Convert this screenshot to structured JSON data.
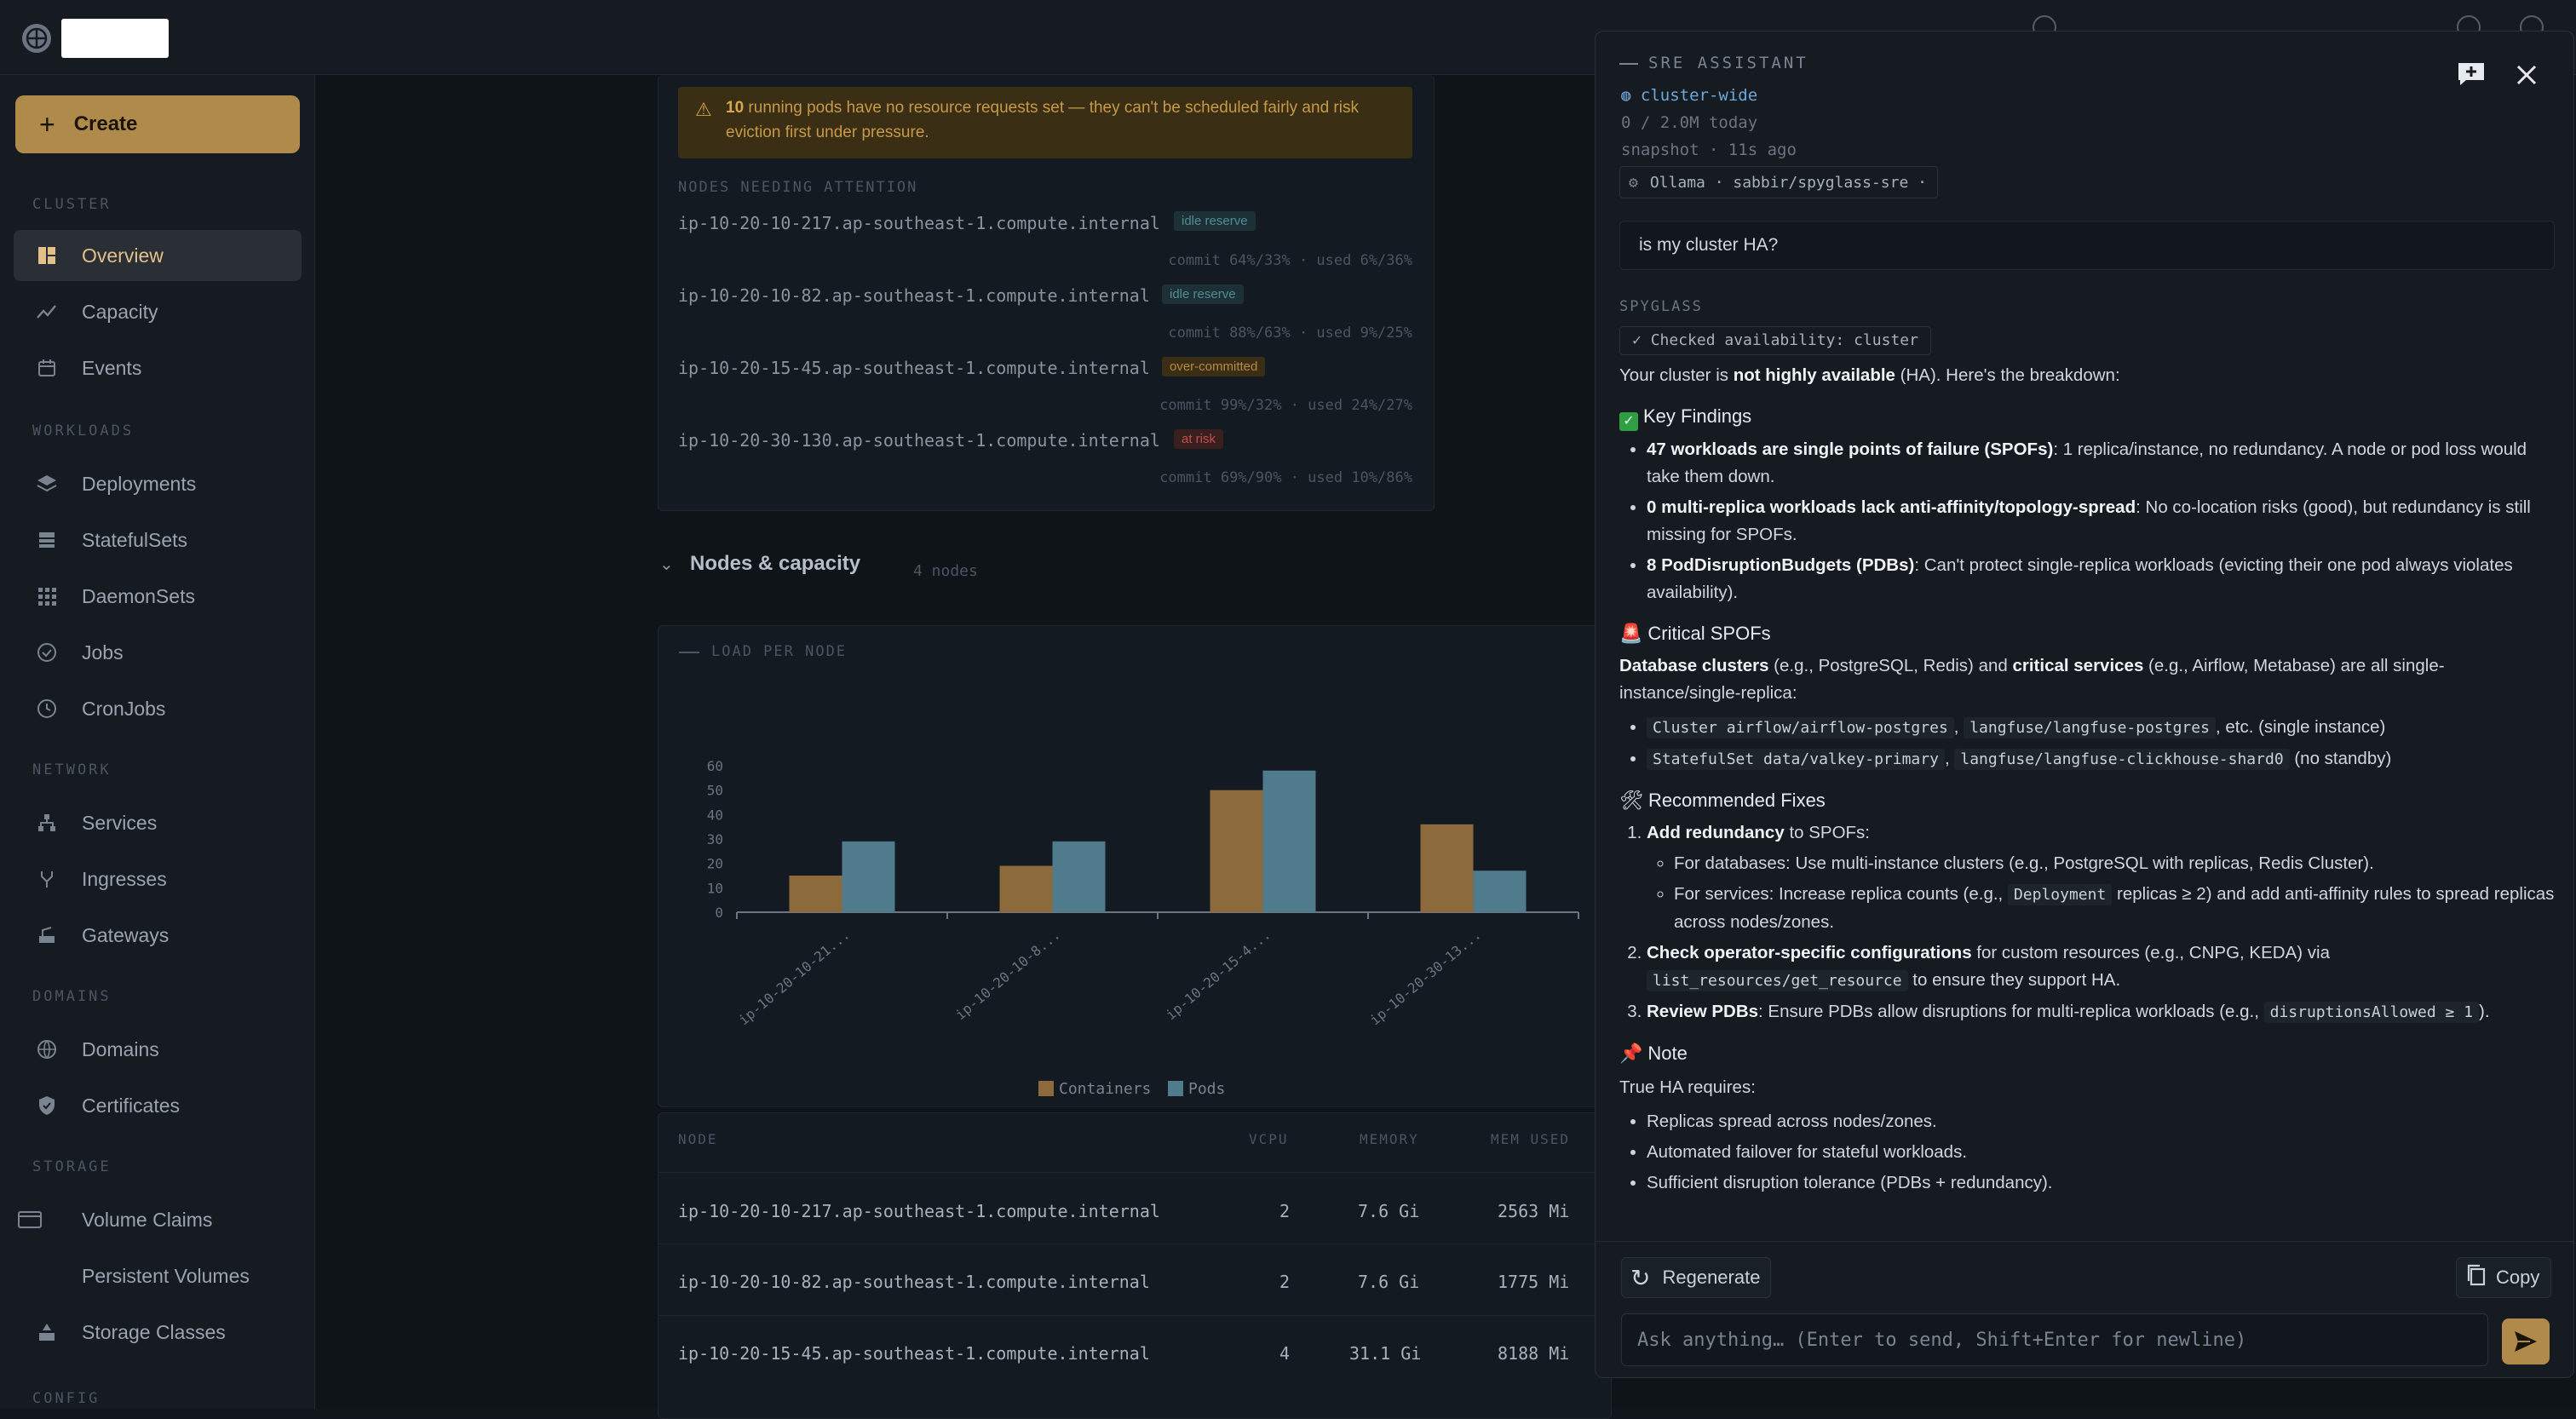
{
  "sidebar": {
    "create_label": "Create",
    "sections": {
      "cluster": "CLUSTER",
      "workloads": "WORKLOADS",
      "network": "NETWORK",
      "domains": "DOMAINS",
      "storage": "STORAGE",
      "config": "CONFIG"
    },
    "items": {
      "overview": "Overview",
      "capacity": "Capacity",
      "events": "Events",
      "deployments": "Deployments",
      "statefulsets": "StatefulSets",
      "daemonsets": "DaemonSets",
      "jobs": "Jobs",
      "cronjobs": "CronJobs",
      "services": "Services",
      "ingresses": "Ingresses",
      "gateways": "Gateways",
      "domains": "Domains",
      "certificates": "Certificates",
      "volume_claims": "Volume Claims",
      "persistent_volumes": "Persistent Volumes",
      "storage_classes": "Storage Classes"
    },
    "active": "overview"
  },
  "main": {
    "warning": {
      "count": "10",
      "text": "running pods have no resource requests set — they can't be scheduled fairly and risk eviction first under pressure."
    },
    "attention_label": "NODES NEEDING ATTENTION",
    "attention_nodes": [
      {
        "name": "ip-10-20-10-217.ap-southeast-1.compute.internal",
        "tag": "idle reserve",
        "stat": "commit 64%/33% · used 6%/36%"
      },
      {
        "name": "ip-10-20-10-82.ap-southeast-1.compute.internal",
        "tag": "idle reserve",
        "stat": "commit 88%/63% · used 9%/25%"
      },
      {
        "name": "ip-10-20-15-45.ap-southeast-1.compute.internal",
        "tag": "over-committed",
        "stat": "commit 99%/32% · used 24%/27%"
      },
      {
        "name": "ip-10-20-30-130.ap-southeast-1.compute.internal",
        "tag": "at risk",
        "stat": "commit 69%/90% · used 10%/86%"
      }
    ],
    "nodes_section": {
      "title": "Nodes & capacity",
      "count": "4 nodes"
    },
    "table": {
      "headers": {
        "node": "NODE",
        "vcpu": "VCPU",
        "memory": "MEMORY",
        "mem_used": "MEM USED"
      },
      "rows": [
        {
          "node": "ip-10-20-10-217.ap-southeast-1.compute.internal",
          "vcpu": "2",
          "memory": "7.6 Gi",
          "mem_used": "2563 Mi"
        },
        {
          "node": "ip-10-20-10-82.ap-southeast-1.compute.internal",
          "vcpu": "2",
          "memory": "7.6 Gi",
          "mem_used": "1775 Mi"
        },
        {
          "node": "ip-10-20-15-45.ap-southeast-1.compute.internal",
          "vcpu": "4",
          "memory": "31.1 Gi",
          "mem_used": "8188 Mi"
        }
      ]
    }
  },
  "chart_data": {
    "type": "bar",
    "title": "LOAD PER NODE",
    "categories": [
      "ip-10-20-10-21...",
      "ip-10-20-10-8...",
      "ip-10-20-15-4...",
      "ip-10-20-30-13..."
    ],
    "series": [
      {
        "name": "Containers",
        "values": [
          15,
          19,
          50,
          36
        ]
      },
      {
        "name": "Pods",
        "values": [
          29,
          29,
          58,
          17
        ]
      }
    ],
    "yticks": [
      "60",
      "50",
      "40",
      "30",
      "20",
      "10",
      "0"
    ],
    "ylim": [
      0,
      60
    ],
    "colors": {
      "Containers": "#8c6a3c",
      "Pods": "#4f7b8c"
    },
    "legend": "bottom",
    "grid": false
  },
  "assistant": {
    "title": "SRE ASSISTANT",
    "scope": "cluster-wide",
    "tokens": "0 / 2.0M today",
    "snapshot": "snapshot · 11s ago",
    "model": "Ollama · sabbir/spyglass-sre ·",
    "question": "is my cluster HA?",
    "source_label": "SPYGLASS",
    "tool_call": "Checked availability: cluster",
    "intro_pre": "Your cluster is ",
    "intro_bold": "not highly available",
    "intro_post": " (HA). Here's the breakdown:",
    "key_findings": "Key Findings",
    "f1_bold": "47 workloads are single points of failure (SPOFs)",
    "f1_text": ": 1 replica/instance, no redundancy. A node or pod loss would take them down.",
    "f2_bold": "0 multi-replica workloads lack anti-affinity/topology-spread",
    "f2_text": ": No co-location risks (good), but redundancy is still missing for SPOFs.",
    "f3_bold": "8 PodDisruptionBudgets (PDBs)",
    "f3_text": ": Can't protect single-replica workloads (evicting their one pod always violates availability).",
    "critical": "Critical SPOFs",
    "c_b1": "Database clusters",
    "c_t1": " (e.g., PostgreSQL, Redis) and ",
    "c_b2": "critical services",
    "c_t2": " (e.g., Airflow, Metabase) are all single-instance/single-replica:",
    "c_l1_code1": "Cluster airflow/airflow-postgres",
    "c_l1_sep": ",",
    "c_l1_code2": "langfuse/langfuse-postgres",
    "c_l1_tail": ", etc. (single instance)",
    "c_l2_code1": "StatefulSet data/valkey-primary",
    "c_l2_sep": ",",
    "c_l2_code2": "langfuse/langfuse-clickhouse-shard0",
    "c_l2_tail": " (no standby)",
    "fixes": "Recommended Fixes",
    "fx1_bold": "Add redundancy",
    "fx1_text": " to SPOFs:",
    "fx1_s1": "For databases: Use multi-instance clusters (e.g., PostgreSQL with replicas, Redis Cluster).",
    "fx1_s2_pre": "For services: Increase replica counts (e.g., ",
    "fx1_s2_code": "Deployment",
    "fx1_s2_post": " replicas ≥ 2) and add anti-affinity rules to spread replicas across nodes/zones.",
    "fx2_bold": "Check operator-specific configurations",
    "fx2_text": " for custom resources (e.g., CNPG, KEDA) via ",
    "fx2_code": "list_resources/get_resource",
    "fx2_tail": " to ensure they support HA.",
    "fx3_bold": "Review PDBs",
    "fx3_text": ": Ensure PDBs allow disruptions for multi-replica workloads (e.g., ",
    "fx3_code": "disruptionsAllowed ≥ 1",
    "fx3_tail": ").",
    "note": "Note",
    "note_intro": "True HA requires:",
    "n1": "Replicas spread across nodes/zones.",
    "n2": "Automated failover for stateful workloads.",
    "n3": "Sufficient disruption tolerance (PDBs + redundancy).",
    "regenerate": "Regenerate",
    "copy": "Copy",
    "input_placeholder": "Ask anything… (Enter to send, Shift+Enter for newline)"
  }
}
